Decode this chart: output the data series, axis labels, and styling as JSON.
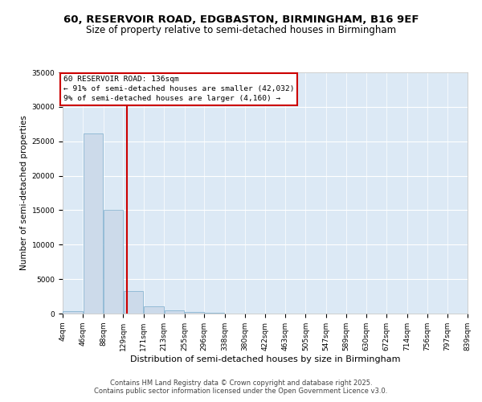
{
  "title1": "60, RESERVOIR ROAD, EDGBASTON, BIRMINGHAM, B16 9EF",
  "title2": "Size of property relative to semi-detached houses in Birmingham",
  "xlabel": "Distribution of semi-detached houses by size in Birmingham",
  "ylabel": "Number of semi-detached properties",
  "bin_labels": [
    "4sqm",
    "46sqm",
    "88sqm",
    "129sqm",
    "171sqm",
    "213sqm",
    "255sqm",
    "296sqm",
    "338sqm",
    "380sqm",
    "422sqm",
    "463sqm",
    "505sqm",
    "547sqm",
    "589sqm",
    "630sqm",
    "672sqm",
    "714sqm",
    "756sqm",
    "797sqm",
    "839sqm"
  ],
  "bin_edges": [
    4,
    46,
    88,
    129,
    171,
    213,
    255,
    296,
    338,
    380,
    422,
    463,
    505,
    547,
    589,
    630,
    672,
    714,
    756,
    797,
    839
  ],
  "bar_heights": [
    400,
    26100,
    15100,
    3300,
    1000,
    450,
    200,
    80,
    30,
    15,
    10,
    8,
    5,
    4,
    3,
    2,
    2,
    1,
    1,
    1
  ],
  "bar_color": "#ccdaea",
  "bar_edge_color": "#7aaccc",
  "property_size": 136,
  "vline_color": "#cc0000",
  "annotation_text": "60 RESERVOIR ROAD: 136sqm\n← 91% of semi-detached houses are smaller (42,032)\n9% of semi-detached houses are larger (4,160) →",
  "annotation_box_facecolor": "#ffffff",
  "annotation_box_edgecolor": "#cc0000",
  "ylim": [
    0,
    35000
  ],
  "yticks": [
    0,
    5000,
    10000,
    15000,
    20000,
    25000,
    30000,
    35000
  ],
  "plot_bg_color": "#dce9f5",
  "footer1": "Contains HM Land Registry data © Crown copyright and database right 2025.",
  "footer2": "Contains public sector information licensed under the Open Government Licence v3.0.",
  "title_fontsize": 9.5,
  "subtitle_fontsize": 8.5,
  "ylabel_fontsize": 7.5,
  "xlabel_fontsize": 8,
  "tick_fontsize": 6.5,
  "annotation_fontsize": 6.8,
  "footer_fontsize": 6
}
